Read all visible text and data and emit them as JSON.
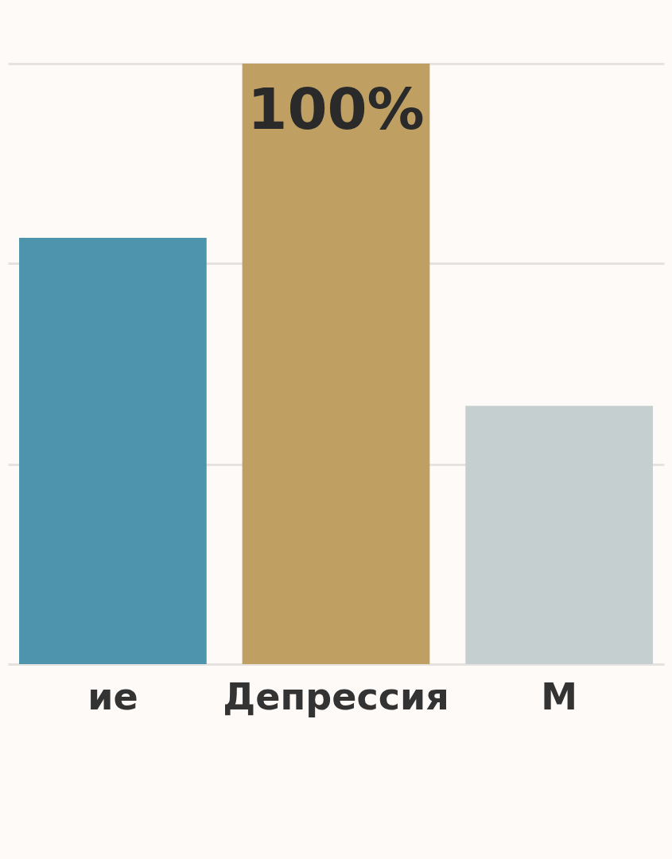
{
  "chart_data": {
    "type": "bar",
    "categories": [
      "ие",
      "Депрессия",
      "М"
    ],
    "values": [
      71,
      100,
      43
    ],
    "colors": [
      "#4f94ad",
      "#bf9f62",
      "#c5cfcf"
    ],
    "value_labels": [
      null,
      "100%",
      null
    ],
    "ylim": [
      0,
      100
    ],
    "yticks": [
      {
        "value": 0,
        "label": null
      },
      {
        "value": 33.3,
        "label": null
      },
      {
        "value": 66.7,
        "label": null
      },
      {
        "value": 100,
        "label": null
      }
    ],
    "grid": "y",
    "tick_labels": "x"
  }
}
